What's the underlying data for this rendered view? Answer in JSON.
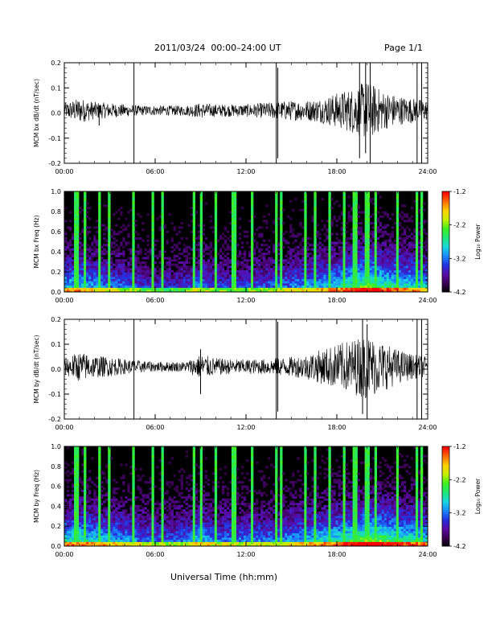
{
  "header": {
    "title": "2011/03/24  00:00–24:00 UT",
    "page": "Page 1/1"
  },
  "x_axis": {
    "title": "Universal Time (hh:mm)",
    "ticks": [
      "00:00",
      "06:00",
      "12:00",
      "18:00",
      "24:00"
    ],
    "tick_hours": [
      0,
      6,
      12,
      18,
      24
    ]
  },
  "colorbar": {
    "title": "Log₁₀ Power",
    "ticks": [
      "-1.2",
      "-2.2",
      "-3.2",
      "-4.2"
    ],
    "tick_values": [
      -1.2,
      -2.2,
      -3.2,
      -4.2
    ],
    "range": [
      -4.2,
      -1.2
    ]
  },
  "colors": {
    "trace": "#000000",
    "colormap": [
      "#000000",
      "#3a0050",
      "#5a0ca8",
      "#2230e0",
      "#1a8aff",
      "#18d8e0",
      "#1ee87a",
      "#3cf020",
      "#c8f000",
      "#ffd000",
      "#ff6a00",
      "#ff0000"
    ]
  },
  "chart_data": [
    {
      "type": "line",
      "panel": "bx-timeseries",
      "ylabel": "MCM bx dB/dt (nT/sec)",
      "xlim": [
        0,
        24
      ],
      "ylim": [
        -0.2,
        0.2
      ],
      "yticks": [
        -0.2,
        -0.1,
        0.0,
        0.1,
        0.2
      ],
      "ytick_labels": [
        "-0.2",
        "-0.1",
        "0.0",
        "0.1",
        "0.2"
      ],
      "envelope": {
        "description": "1 Hz dB/dt trace, amplitude envelope by hour (UT)",
        "hours": [
          0,
          1,
          2,
          3,
          4,
          5,
          6,
          7,
          8,
          9,
          10,
          11,
          12,
          13,
          14,
          15,
          16,
          17,
          18,
          19,
          20,
          21,
          22,
          23,
          24
        ],
        "amplitude": [
          0.03,
          0.05,
          0.035,
          0.03,
          0.025,
          0.02,
          0.02,
          0.02,
          0.02,
          0.03,
          0.025,
          0.025,
          0.025,
          0.03,
          0.035,
          0.04,
          0.04,
          0.05,
          0.07,
          0.09,
          0.12,
          0.08,
          0.06,
          0.05,
          0.04
        ]
      },
      "spikes": [
        {
          "hour": 2.3,
          "min": -0.05,
          "max": 0.03
        },
        {
          "hour": 4.6,
          "min": -0.2,
          "max": 0.2
        },
        {
          "hour": 14.0,
          "min": -0.2,
          "max": 0.2
        },
        {
          "hour": 14.1,
          "min": -0.18,
          "max": 0.18
        },
        {
          "hour": 19.5,
          "min": -0.18,
          "max": 0.2
        },
        {
          "hour": 19.9,
          "min": -0.16,
          "max": 0.2
        },
        {
          "hour": 20.2,
          "min": -0.2,
          "max": 0.2
        },
        {
          "hour": 23.3,
          "min": -0.2,
          "max": 0.2
        },
        {
          "hour": 23.6,
          "min": -0.2,
          "max": 0.2
        }
      ]
    },
    {
      "type": "heatmap",
      "panel": "bx-spectrogram",
      "ylabel": "MCM bx Freq (Hz)",
      "xlim": [
        0,
        24
      ],
      "ylim": [
        0,
        1.0
      ],
      "yticks": [
        0.0,
        0.2,
        0.4,
        0.6,
        0.8,
        1.0
      ],
      "ytick_labels": [
        "0.0",
        "0.2",
        "0.4",
        "0.6",
        "0.8",
        "1.0"
      ],
      "value_range": [
        -4.2,
        -1.2
      ],
      "enhanced_hours": {
        "hours": [
          0,
          1,
          2,
          3,
          4,
          5,
          6,
          7,
          8,
          9,
          10,
          11,
          12,
          13,
          14,
          15,
          16,
          17,
          18,
          19,
          20,
          21,
          22,
          23,
          24
        ],
        "level": [
          0.55,
          0.6,
          0.5,
          0.45,
          0.4,
          0.35,
          0.3,
          0.3,
          0.35,
          0.45,
          0.35,
          0.35,
          0.35,
          0.4,
          0.4,
          0.45,
          0.5,
          0.55,
          0.6,
          0.7,
          0.8,
          0.7,
          0.65,
          0.6,
          0.55
        ]
      },
      "vertical_streaks_hours": [
        0.8,
        1.4,
        2.3,
        2.9,
        4.6,
        5.9,
        6.5,
        8.6,
        9.1,
        10.0,
        11.2,
        12.4,
        14.0,
        14.3,
        15.9,
        16.5,
        17.5,
        18.5,
        19.2,
        20.0,
        20.6,
        22.0,
        23.3,
        23.6
      ]
    },
    {
      "type": "line",
      "panel": "by-timeseries",
      "ylabel": "MCM by dB/dt (nT/sec)",
      "xlim": [
        0,
        24
      ],
      "ylim": [
        -0.2,
        0.2
      ],
      "yticks": [
        -0.2,
        -0.1,
        0.0,
        0.1,
        0.2
      ],
      "ytick_labels": [
        "-0.2",
        "-0.1",
        "0.0",
        "0.1",
        "0.2"
      ],
      "envelope": {
        "description": "1 Hz dB/dt trace, amplitude envelope by hour (UT)",
        "hours": [
          0,
          1,
          2,
          3,
          4,
          5,
          6,
          7,
          8,
          9,
          10,
          11,
          12,
          13,
          14,
          15,
          16,
          17,
          18,
          19,
          20,
          21,
          22,
          23,
          24
        ],
        "amplitude": [
          0.035,
          0.06,
          0.045,
          0.04,
          0.03,
          0.025,
          0.02,
          0.02,
          0.02,
          0.05,
          0.035,
          0.03,
          0.03,
          0.03,
          0.035,
          0.04,
          0.05,
          0.07,
          0.09,
          0.11,
          0.13,
          0.1,
          0.07,
          0.05,
          0.04
        ]
      },
      "spikes": [
        {
          "hour": 4.6,
          "min": -0.2,
          "max": 0.2
        },
        {
          "hour": 9.0,
          "min": -0.1,
          "max": 0.08
        },
        {
          "hour": 14.0,
          "min": -0.2,
          "max": 0.2
        },
        {
          "hour": 14.1,
          "min": -0.17,
          "max": 0.19
        },
        {
          "hour": 19.7,
          "min": -0.18,
          "max": 0.2
        },
        {
          "hour": 20.0,
          "min": -0.2,
          "max": 0.18
        },
        {
          "hour": 23.3,
          "min": -0.2,
          "max": 0.2
        },
        {
          "hour": 23.6,
          "min": -0.2,
          "max": 0.2
        }
      ]
    },
    {
      "type": "heatmap",
      "panel": "by-spectrogram",
      "ylabel": "MCM by Freq (Hz)",
      "xlim": [
        0,
        24
      ],
      "ylim": [
        0,
        1.0
      ],
      "yticks": [
        0.0,
        0.2,
        0.4,
        0.6,
        0.8,
        1.0
      ],
      "ytick_labels": [
        "0.0",
        "0.2",
        "0.4",
        "0.6",
        "0.8",
        "1.0"
      ],
      "value_range": [
        -4.2,
        -1.2
      ],
      "enhanced_hours": {
        "hours": [
          0,
          1,
          2,
          3,
          4,
          5,
          6,
          7,
          8,
          9,
          10,
          11,
          12,
          13,
          14,
          15,
          16,
          17,
          18,
          19,
          20,
          21,
          22,
          23,
          24
        ],
        "level": [
          0.6,
          0.65,
          0.6,
          0.55,
          0.5,
          0.45,
          0.4,
          0.4,
          0.45,
          0.55,
          0.45,
          0.45,
          0.45,
          0.45,
          0.45,
          0.5,
          0.55,
          0.6,
          0.65,
          0.75,
          0.85,
          0.8,
          0.7,
          0.65,
          0.6
        ]
      },
      "vertical_streaks_hours": [
        0.8,
        1.4,
        2.3,
        2.9,
        4.6,
        5.9,
        6.5,
        8.6,
        9.1,
        10.0,
        11.2,
        12.4,
        14.0,
        14.3,
        15.9,
        16.5,
        17.5,
        18.5,
        19.2,
        20.0,
        20.6,
        22.0,
        23.3,
        23.6
      ]
    }
  ]
}
